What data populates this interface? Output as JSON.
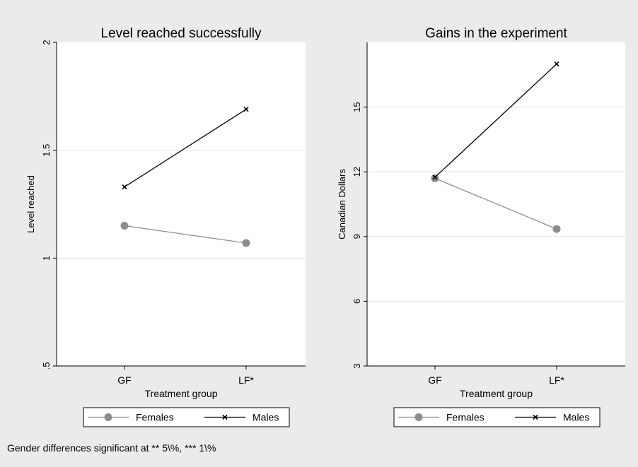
{
  "note": "Gender differences significant at ** 5\\%, *** 1\\%",
  "colors": {
    "outer_background": "#ebebeb",
    "plot_background": "#ffffff",
    "gridline": "#e3e3e3",
    "females": "#8c8c8c",
    "males": "#000000"
  },
  "chart_data": [
    {
      "type": "line",
      "title": "Level reached successfully",
      "xlabel": "Treatment group",
      "ylabel": "Level reached",
      "categories": [
        "GF",
        "LF*"
      ],
      "ylim": [
        0.5,
        2.0
      ],
      "yticks": [
        ".5",
        "1",
        "1.5",
        "2"
      ],
      "ytick_values": [
        0.5,
        1,
        1.5,
        2
      ],
      "grid": true,
      "legend_position": "bottom",
      "series": [
        {
          "name": "Females",
          "marker": "circle",
          "values": [
            1.15,
            1.07
          ]
        },
        {
          "name": "Males",
          "marker": "x",
          "values": [
            1.33,
            1.69
          ]
        }
      ]
    },
    {
      "type": "line",
      "title": "Gains in the experiment",
      "xlabel": "Treatment group",
      "ylabel": "Canadian Dollars",
      "categories": [
        "GF",
        "LF*"
      ],
      "ylim": [
        3,
        18
      ],
      "yticks": [
        "3",
        "6",
        "9",
        "12",
        "15"
      ],
      "ytick_values": [
        3,
        6,
        9,
        12,
        15
      ],
      "grid": true,
      "legend_position": "bottom",
      "series": [
        {
          "name": "Females",
          "marker": "circle",
          "values": [
            11.7,
            9.35
          ]
        },
        {
          "name": "Males",
          "marker": "x",
          "values": [
            11.75,
            17.0
          ]
        }
      ]
    }
  ]
}
